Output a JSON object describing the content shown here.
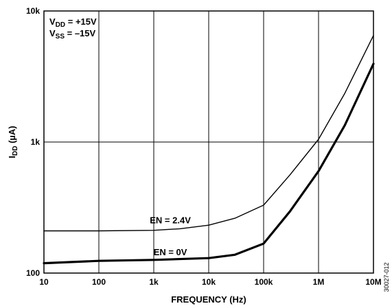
{
  "chart_data": {
    "type": "line",
    "xscale": "log",
    "yscale": "log",
    "xlim": [
      10,
      10000000
    ],
    "ylim": [
      100,
      10000
    ],
    "grid": true,
    "xlabel": "FREQUENCY (Hz)",
    "ylabel": {
      "main": "I",
      "sub": "DD",
      "unit": " (µA)"
    },
    "x_ticks": [
      {
        "value": 10,
        "label": "10"
      },
      {
        "value": 100,
        "label": "100"
      },
      {
        "value": 1000,
        "label": "1k"
      },
      {
        "value": 10000,
        "label": "10k"
      },
      {
        "value": 100000,
        "label": "100k"
      },
      {
        "value": 1000000,
        "label": "1M"
      },
      {
        "value": 10000000,
        "label": "10M"
      }
    ],
    "y_ticks": [
      {
        "value": 100,
        "label": "100"
      },
      {
        "value": 1000,
        "label": "1k"
      },
      {
        "value": 10000,
        "label": "10k"
      }
    ],
    "conditions": [
      {
        "main": "V",
        "sub": "DD",
        "rest": " = +15V"
      },
      {
        "main": "V",
        "sub": "SS",
        "rest": " = –15V"
      }
    ],
    "series": [
      {
        "name": "EN = 2.4V",
        "label_at": {
          "x": 2000,
          "y": 240
        },
        "x": [
          10,
          100,
          1000,
          3000,
          10000,
          30000,
          100000,
          300000,
          1000000,
          3000000,
          10000000
        ],
        "y": [
          210,
          210,
          212,
          218,
          232,
          262,
          330,
          560,
          1050,
          2350,
          6500
        ]
      },
      {
        "name": "EN = 0V",
        "label_at": {
          "x": 2000,
          "y": 137
        },
        "x": [
          10,
          100,
          1000,
          10000,
          30000,
          100000,
          300000,
          1000000,
          3000000,
          10000000
        ],
        "y": [
          119,
          124,
          126,
          130,
          138,
          168,
          295,
          600,
          1340,
          3950
        ]
      }
    ],
    "figure_id": "30027-012"
  }
}
